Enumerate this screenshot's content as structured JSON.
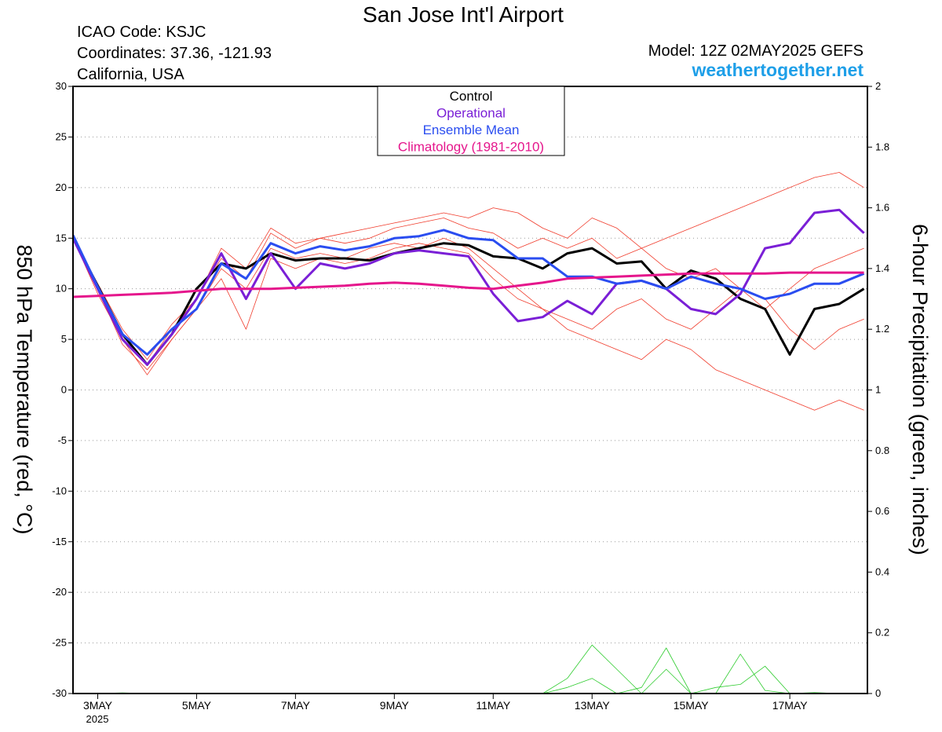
{
  "chart_data": {
    "type": "line",
    "title": "San Jose Int'l Airport",
    "info_left": [
      "ICAO Code: KSJC",
      "Coordinates: 37.36, -121.93",
      "California, USA"
    ],
    "model": "Model: 12Z 02MAY2025 GEFS",
    "source": "weathertogether.net",
    "y_label": "850 hPa Temperature (red, °C)",
    "y2_label": "6-hour Precipitation (green, inches)",
    "x_year_label": "2025",
    "x": [
      -0.5,
      0,
      0.5,
      1,
      1.5,
      2,
      2.5,
      3,
      3.5,
      4,
      4.5,
      5,
      5.5,
      6,
      6.5,
      7,
      7.5,
      8,
      8.5,
      9,
      9.5,
      10,
      10.5,
      11,
      11.5,
      12,
      12.5,
      13,
      13.5,
      14,
      14.5,
      15,
      15.5
    ],
    "xlim": [
      -0.5,
      15.57
    ],
    "xticks": [
      {
        "value": 0,
        "label": "3MAY"
      },
      {
        "value": 2,
        "label": "5MAY"
      },
      {
        "value": 4,
        "label": "7MAY"
      },
      {
        "value": 6,
        "label": "9MAY"
      },
      {
        "value": 8,
        "label": "11MAY"
      },
      {
        "value": 10,
        "label": "13MAY"
      },
      {
        "value": 12,
        "label": "15MAY"
      },
      {
        "value": 14,
        "label": "17MAY"
      }
    ],
    "ylim": [
      -30,
      30
    ],
    "yticks": [
      -30,
      -25,
      -20,
      -15,
      -10,
      -5,
      0,
      5,
      10,
      15,
      20,
      25,
      30
    ],
    "y2lim": [
      0,
      2
    ],
    "y2ticks": [
      0,
      0.2,
      0.4,
      0.6,
      0.8,
      1,
      1.2,
      1.4,
      1.6,
      1.8,
      2
    ],
    "grid": true,
    "members": [
      {
        "color": "#f03c2c",
        "values": [
          15,
          10.5,
          6,
          3,
          6.5,
          9,
          13,
          11,
          15.5,
          14,
          15,
          14.5,
          15,
          16,
          16.5,
          17,
          16,
          15.5,
          14,
          15,
          14,
          15,
          13,
          14,
          15,
          16,
          17,
          18,
          19,
          20,
          21,
          21.5,
          20
        ]
      },
      {
        "color": "#f03c2c",
        "values": [
          15,
          9.5,
          5,
          1.5,
          5,
          8,
          12,
          10,
          14,
          13,
          13.5,
          13,
          14,
          14.5,
          14,
          15,
          14,
          12,
          10,
          8,
          6,
          5,
          4,
          3,
          5,
          4,
          2,
          1,
          0,
          -1,
          -2,
          -1,
          -2
        ]
      },
      {
        "color": "#f03c2c",
        "values": [
          15.2,
          10,
          5.5,
          2.5,
          6,
          9,
          14,
          12,
          16,
          14.5,
          15,
          15.5,
          16,
          16.5,
          17,
          17.5,
          17,
          18,
          17.5,
          16,
          15,
          17,
          16,
          14,
          12,
          11,
          12,
          10,
          8,
          10,
          12,
          13,
          14
        ]
      },
      {
        "color": "#f03c2c",
        "values": [
          15,
          10,
          4.5,
          2,
          5,
          8,
          11,
          6,
          13,
          12,
          13,
          12.5,
          13,
          14,
          14.5,
          14,
          13.5,
          11,
          9,
          8,
          7,
          6,
          8,
          9,
          7,
          6,
          8,
          10,
          9,
          6,
          4,
          6,
          7
        ]
      }
    ],
    "precip_members": [
      {
        "color": "#2ecc2e",
        "values": [
          0,
          0,
          0.002,
          0,
          0,
          0,
          0,
          0,
          0,
          0,
          0,
          0,
          0,
          0,
          0,
          0,
          0,
          0,
          0,
          0,
          0.05,
          0.16,
          0.08,
          0,
          0.08,
          0,
          0,
          0.13,
          0.01,
          0,
          0.003,
          0,
          0
        ]
      },
      {
        "color": "#2ecc2e",
        "values": [
          0,
          0,
          0.001,
          0,
          0,
          0,
          0,
          0,
          0,
          0,
          0,
          0,
          0,
          0,
          0,
          0,
          0,
          0,
          0,
          0,
          0.02,
          0.05,
          0,
          0.02,
          0.15,
          0,
          0.02,
          0.03,
          0.09,
          0,
          0,
          0,
          0
        ]
      }
    ],
    "series": [
      {
        "name": "Control",
        "color": "#000000",
        "values": [
          15,
          10.3,
          5.5,
          2.5,
          5.5,
          10,
          12.5,
          12,
          13.5,
          12.8,
          13,
          13,
          12.8,
          13.5,
          14,
          14.5,
          14.3,
          13.2,
          13,
          12,
          13.5,
          14,
          12.5,
          12.7,
          10,
          11.8,
          11,
          9,
          8,
          3.5,
          8,
          8.5,
          10
        ]
      },
      {
        "name": "Operational",
        "color": "#7a1fd6",
        "values": [
          15,
          10,
          5,
          2.5,
          5.5,
          9,
          13.5,
          9,
          13.5,
          10,
          12.5,
          12,
          12.5,
          13.5,
          13.8,
          13.5,
          13.2,
          9.5,
          6.8,
          7.2,
          8.8,
          7.5,
          10.5,
          10.8,
          10,
          8,
          7.5,
          9.5,
          14,
          14.5,
          17.5,
          17.8,
          15.5
        ]
      },
      {
        "name": "Ensemble Mean",
        "color": "#2a4df0",
        "values": [
          15.3,
          10.2,
          5.5,
          3.5,
          6,
          8,
          12.5,
          11,
          14.5,
          13.5,
          14.2,
          13.8,
          14.2,
          15,
          15.2,
          15.8,
          15,
          14.8,
          13,
          13,
          11.2,
          11.2,
          10.5,
          10.8,
          10,
          11.2,
          10.5,
          10,
          9,
          9.5,
          10.5,
          10.5,
          11.5
        ]
      },
      {
        "name": "Climatology (1981-2010)",
        "color": "#e5168c",
        "values": [
          9.2,
          9.3,
          9.4,
          9.5,
          9.6,
          9.8,
          10,
          10,
          10,
          10.1,
          10.2,
          10.3,
          10.5,
          10.6,
          10.5,
          10.3,
          10.1,
          10,
          10.3,
          10.6,
          11,
          11.1,
          11.2,
          11.3,
          11.4,
          11.5,
          11.5,
          11.5,
          11.5,
          11.6,
          11.6,
          11.6,
          11.6
        ]
      }
    ]
  }
}
